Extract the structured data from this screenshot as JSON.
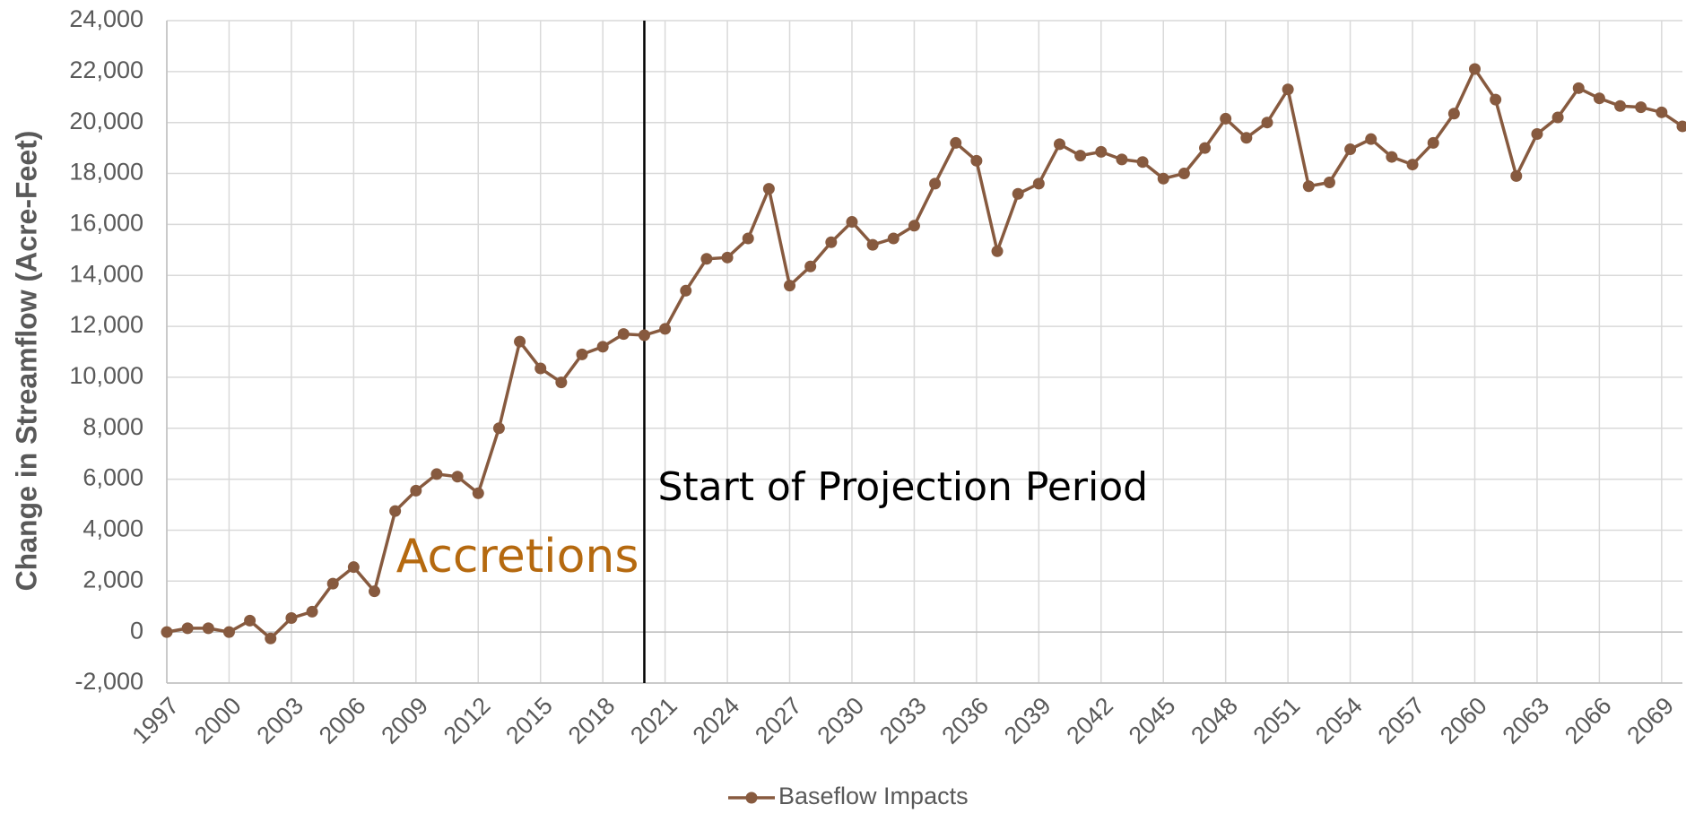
{
  "chart_data": {
    "type": "line",
    "y_label": "Change in Streamflow  (Acre-Feet)",
    "x": [
      1997,
      1998,
      1999,
      2000,
      2001,
      2002,
      2003,
      2004,
      2005,
      2006,
      2007,
      2008,
      2009,
      2010,
      2011,
      2012,
      2013,
      2014,
      2015,
      2016,
      2017,
      2018,
      2019,
      2020,
      2021,
      2022,
      2023,
      2024,
      2025,
      2026,
      2027,
      2028,
      2029,
      2030,
      2031,
      2032,
      2033,
      2034,
      2035,
      2036,
      2037,
      2038,
      2039,
      2040,
      2041,
      2042,
      2043,
      2044,
      2045,
      2046,
      2047,
      2048,
      2049,
      2050,
      2051,
      2052,
      2053,
      2054,
      2055,
      2056,
      2057,
      2058,
      2059,
      2060,
      2061,
      2062,
      2063,
      2064,
      2065,
      2066,
      2067,
      2068,
      2069,
      2070
    ],
    "series": [
      {
        "name": "Baseflow Impacts",
        "color": "#875a3f",
        "values": [
          0,
          150,
          150,
          0,
          450,
          -250,
          550,
          800,
          1900,
          2550,
          1600,
          4750,
          5550,
          6200,
          6100,
          5450,
          8000,
          11400,
          10350,
          9800,
          10900,
          11200,
          11700,
          11650,
          11900,
          13400,
          14650,
          14700,
          15450,
          17400,
          13600,
          14350,
          15300,
          16100,
          15200,
          15450,
          15950,
          17600,
          19200,
          18500,
          14950,
          17200,
          17600,
          19150,
          18700,
          18850,
          18550,
          18450,
          17800,
          18000,
          19000,
          20150,
          19400,
          20000,
          21300,
          17500,
          17650,
          18950,
          19350,
          18650,
          18350,
          19200,
          20350,
          22100,
          20900,
          17900,
          19550,
          20200,
          21350,
          20950,
          20650,
          20600,
          20400,
          19850
        ]
      }
    ],
    "xlim": [
      1997,
      2070
    ],
    "xticks": [
      1997,
      2000,
      2003,
      2006,
      2009,
      2012,
      2015,
      2018,
      2021,
      2024,
      2027,
      2030,
      2033,
      2036,
      2039,
      2042,
      2045,
      2048,
      2051,
      2054,
      2057,
      2060,
      2063,
      2066,
      2069
    ],
    "ylim": [
      -2000,
      24000
    ],
    "yticks": [
      {
        "value": -2000,
        "label": "-2,000"
      },
      0,
      {
        "value": 2000,
        "label": "2,000"
      },
      {
        "value": 4000,
        "label": "4,000"
      },
      {
        "value": 6000,
        "label": "6,000"
      },
      {
        "value": 8000,
        "label": "8,000"
      },
      {
        "value": 10000,
        "label": "10,000"
      },
      {
        "value": 12000,
        "label": "12,000"
      },
      {
        "value": 14000,
        "label": "14,000"
      },
      {
        "value": 16000,
        "label": "16,000"
      },
      {
        "value": 18000,
        "label": "18,000"
      },
      {
        "value": 20000,
        "label": "20,000"
      },
      {
        "value": 22000,
        "label": "22,000"
      },
      {
        "value": 24000,
        "label": "24,000"
      }
    ],
    "grid": true,
    "legend": "bottom",
    "vertical_line": {
      "x": 2020,
      "label": "Start of Projection Period",
      "color": "#000000"
    },
    "annotation": {
      "text": "Accretions",
      "color": "#b5690f"
    }
  }
}
